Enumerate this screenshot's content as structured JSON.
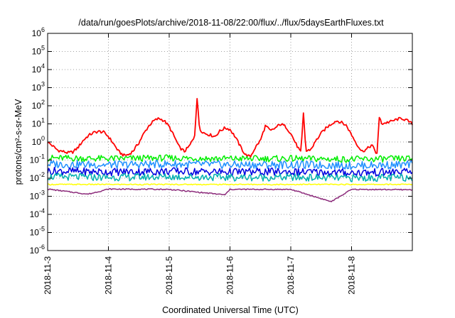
{
  "chart_data": {
    "type": "line",
    "title": "/data/run/goesPlots/archive/2018-11-08/22:00/flux/../flux/5daysEarthFluxes.txt",
    "xlabel": "Coordinated Universal Time (UTC)",
    "ylabel": "protons/cm²-s-sr-MeV",
    "yscale": "log",
    "ylim": [
      1e-06,
      1000000.0
    ],
    "xlim": [
      "2018-11-03",
      "2018-11-09"
    ],
    "grid": true,
    "legend": "none",
    "x_ticks": [
      "2018-11-3",
      "2018-11-4",
      "2018-11-5",
      "2018-11-6",
      "2018-11-7",
      "2018-11-8"
    ],
    "y_ticks": [
      {
        "value": 1e-06,
        "base": "10",
        "exp": "-6"
      },
      {
        "value": 1e-05,
        "base": "10",
        "exp": "-5"
      },
      {
        "value": 0.0001,
        "base": "10",
        "exp": "-4"
      },
      {
        "value": 0.001,
        "base": "10",
        "exp": "-3"
      },
      {
        "value": 0.01,
        "base": "10",
        "exp": "-2"
      },
      {
        "value": 0.1,
        "base": "10",
        "exp": "-1"
      },
      {
        "value": 1,
        "base": "10",
        "exp": "0"
      },
      {
        "value": 10,
        "base": "10",
        "exp": "1"
      },
      {
        "value": 100,
        "base": "10",
        "exp": "2"
      },
      {
        "value": 1000,
        "base": "10",
        "exp": "3"
      },
      {
        "value": 10000,
        "base": "10",
        "exp": "4"
      },
      {
        "value": 100000,
        "base": "10",
        "exp": "5"
      },
      {
        "value": 1000000,
        "base": "10",
        "exp": "6"
      }
    ],
    "series": [
      {
        "color": "#ff0000",
        "x": [
          "2018-11-03T00:00",
          "2018-11-03T02:00",
          "2018-11-03T04:00",
          "2018-11-03T06:00",
          "2018-11-03T08:00",
          "2018-11-03T10:00",
          "2018-11-03T12:00",
          "2018-11-03T14:00",
          "2018-11-03T16:00",
          "2018-11-03T18:00",
          "2018-11-03T20:00",
          "2018-11-03T22:00",
          "2018-11-04T00:00",
          "2018-11-04T02:00",
          "2018-11-04T04:00",
          "2018-11-04T06:00",
          "2018-11-04T08:00",
          "2018-11-04T10:00",
          "2018-11-04T12:00",
          "2018-11-04T14:00",
          "2018-11-04T16:00",
          "2018-11-04T18:00",
          "2018-11-04T20:00",
          "2018-11-04T22:00",
          "2018-11-05T00:00",
          "2018-11-05T02:00",
          "2018-11-05T04:00",
          "2018-11-05T06:00",
          "2018-11-05T08:00",
          "2018-11-05T10:00",
          "2018-11-05T11:00",
          "2018-11-05T12:00",
          "2018-11-05T14:00",
          "2018-11-05T16:00",
          "2018-11-05T18:00",
          "2018-11-05T20:00",
          "2018-11-05T22:00",
          "2018-11-06T00:00",
          "2018-11-06T02:00",
          "2018-11-06T04:00",
          "2018-11-06T06:00",
          "2018-11-06T08:00",
          "2018-11-06T10:00",
          "2018-11-06T12:00",
          "2018-11-06T14:00",
          "2018-11-06T16:00",
          "2018-11-06T18:00",
          "2018-11-06T20:00",
          "2018-11-06T22:00",
          "2018-11-07T00:00",
          "2018-11-07T02:00",
          "2018-11-07T04:00",
          "2018-11-07T05:00",
          "2018-11-07T06:00",
          "2018-11-07T08:00",
          "2018-11-07T10:00",
          "2018-11-07T12:00",
          "2018-11-07T14:00",
          "2018-11-07T16:00",
          "2018-11-07T18:00",
          "2018-11-07T20:00",
          "2018-11-07T22:00",
          "2018-11-08T00:00",
          "2018-11-08T02:00",
          "2018-11-08T04:00",
          "2018-11-08T06:00",
          "2018-11-08T08:00",
          "2018-11-08T10:00",
          "2018-11-08T11:00",
          "2018-11-08T12:00",
          "2018-11-08T14:00",
          "2018-11-08T16:00",
          "2018-11-08T18:00",
          "2018-11-08T20:00",
          "2018-11-08T22:00",
          "2018-11-08T23:59"
        ],
        "y": [
          1.0,
          0.6,
          0.35,
          0.3,
          0.25,
          0.28,
          0.5,
          1.2,
          2.2,
          3.2,
          3.8,
          3.5,
          2.0,
          0.8,
          0.3,
          0.18,
          0.2,
          0.35,
          0.9,
          3,
          8,
          15,
          20,
          15,
          7,
          2,
          0.5,
          0.3,
          0.6,
          2,
          250,
          5,
          3,
          2.5,
          2,
          4,
          6,
          5,
          2,
          0.6,
          0.2,
          0.15,
          0.5,
          1.2,
          8,
          4,
          6,
          10,
          7,
          3,
          0.8,
          0.25,
          40,
          0.3,
          0.4,
          1.2,
          3,
          6,
          10,
          15,
          12,
          8,
          2.5,
          0.8,
          0.3,
          0.4,
          0.7,
          0.2,
          25,
          10,
          12,
          14,
          18,
          20,
          15,
          10
        ]
      },
      {
        "color": "#00ee00",
        "x": [
          "2018-11-03T00:00",
          "2018-11-04T00:00",
          "2018-11-05T00:00",
          "2018-11-06T00:00",
          "2018-11-07T00:00",
          "2018-11-08T00:00",
          "2018-11-08T23:59"
        ],
        "y": [
          0.13,
          0.12,
          0.13,
          0.12,
          0.12,
          0.11,
          0.12
        ]
      },
      {
        "color": "#2090ff",
        "x": [
          "2018-11-03T00:00",
          "2018-11-04T00:00",
          "2018-11-05T00:00",
          "2018-11-06T00:00",
          "2018-11-07T00:00",
          "2018-11-08T00:00",
          "2018-11-08T23:59"
        ],
        "y": [
          0.06,
          0.055,
          0.06,
          0.055,
          0.055,
          0.05,
          0.055
        ]
      },
      {
        "color": "#0000e0",
        "x": [
          "2018-11-03T00:00",
          "2018-11-04T00:00",
          "2018-11-05T00:00",
          "2018-11-06T00:00",
          "2018-11-07T00:00",
          "2018-11-08T00:00",
          "2018-11-08T23:59"
        ],
        "y": [
          0.025,
          0.022,
          0.024,
          0.022,
          0.022,
          0.02,
          0.022
        ]
      },
      {
        "color": "#00b0b0",
        "x": [
          "2018-11-03T00:00",
          "2018-11-04T00:00",
          "2018-11-05T00:00",
          "2018-11-06T00:00",
          "2018-11-07T00:00",
          "2018-11-08T00:00",
          "2018-11-08T23:59"
        ],
        "y": [
          0.012,
          0.011,
          0.012,
          0.011,
          0.011,
          0.01,
          0.011
        ]
      },
      {
        "color": "#ffff00",
        "x": [
          "2018-11-03T00:00",
          "2018-11-04T00:00",
          "2018-11-05T00:00",
          "2018-11-06T00:00",
          "2018-11-07T00:00",
          "2018-11-08T00:00",
          "2018-11-08T23:59"
        ],
        "y": [
          0.0045,
          0.0045,
          0.0045,
          0.0045,
          0.0045,
          0.0045,
          0.0045
        ]
      },
      {
        "color": "#8b2a7a",
        "x": [
          "2018-11-03T00:00",
          "2018-11-03T16:00",
          "2018-11-04T00:00",
          "2018-11-05T00:00",
          "2018-11-05T22:00",
          "2018-11-06T00:00",
          "2018-11-07T00:00",
          "2018-11-07T16:00",
          "2018-11-08T00:00",
          "2018-11-08T23:59"
        ],
        "y": [
          0.0025,
          0.0013,
          0.0025,
          0.0024,
          0.0012,
          0.0024,
          0.0024,
          0.0005,
          0.0024,
          0.0023
        ]
      }
    ]
  }
}
